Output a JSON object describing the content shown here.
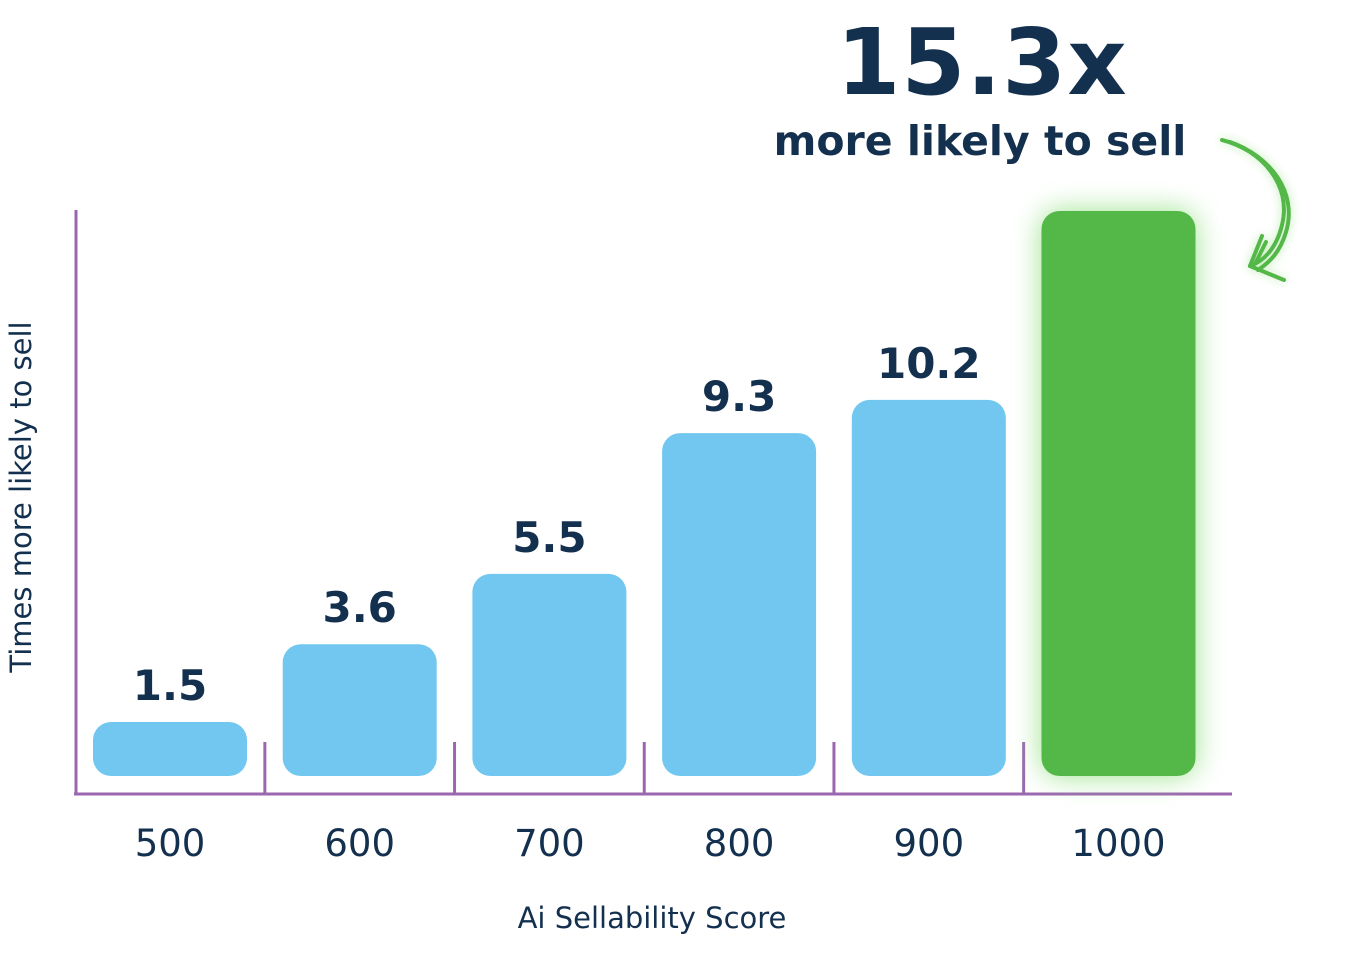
{
  "highlight": {
    "value": "15.3x",
    "caption": "more likely to sell"
  },
  "colors": {
    "bar": "#72c7f0",
    "highlight_bar": "#52b847",
    "axis": "#9b67b0",
    "text": "#14304f",
    "glow": "#8fe07f"
  },
  "chart_data": {
    "type": "bar",
    "categories": [
      "500",
      "600",
      "700",
      "800",
      "900",
      "1000"
    ],
    "values": [
      1.5,
      3.6,
      5.5,
      9.3,
      10.2,
      15.3
    ],
    "data_labels": [
      "1.5",
      "3.6",
      "5.5",
      "9.3",
      "10.2",
      ""
    ],
    "highlight_index": 5,
    "xlabel": "Ai Sellability Score",
    "ylabel": "Times more likely to sell",
    "ylim": [
      0,
      15.3
    ],
    "grid": false,
    "legend": "none"
  }
}
